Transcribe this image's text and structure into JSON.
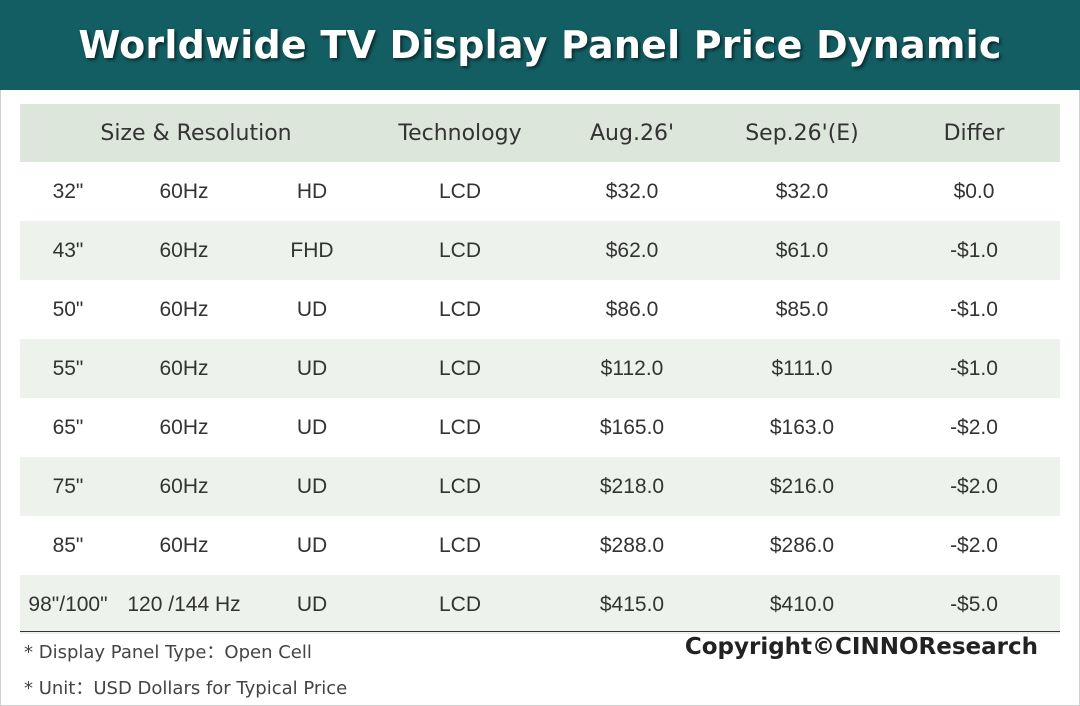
{
  "title": "Worldwide TV Display Panel Price Dynamic",
  "colors": {
    "title_bar": "#135e63",
    "header_row": "#dde6da",
    "alt_row": "#eef2ec"
  },
  "table": {
    "headers": {
      "size_resolution": "Size & Resolution",
      "technology": "Technology",
      "aug": "Aug.26'",
      "sep": "Sep.26'(E)",
      "differ": "Differ"
    },
    "rows": [
      {
        "size": "32\"",
        "refresh": "60Hz",
        "resolution": "HD",
        "technology": "LCD",
        "aug": "$32.0",
        "sep": "$32.0",
        "differ": "$0.0"
      },
      {
        "size": "43\"",
        "refresh": "60Hz",
        "resolution": "FHD",
        "technology": "LCD",
        "aug": "$62.0",
        "sep": "$61.0",
        "differ": "-$1.0"
      },
      {
        "size": "50\"",
        "refresh": "60Hz",
        "resolution": "UD",
        "technology": "LCD",
        "aug": "$86.0",
        "sep": "$85.0",
        "differ": "-$1.0"
      },
      {
        "size": "55\"",
        "refresh": "60Hz",
        "resolution": "UD",
        "technology": "LCD",
        "aug": "$112.0",
        "sep": "$111.0",
        "differ": "-$1.0"
      },
      {
        "size": "65\"",
        "refresh": "60Hz",
        "resolution": "UD",
        "technology": "LCD",
        "aug": "$165.0",
        "sep": "$163.0",
        "differ": "-$2.0"
      },
      {
        "size": "75\"",
        "refresh": "60Hz",
        "resolution": "UD",
        "technology": "LCD",
        "aug": "$218.0",
        "sep": "$216.0",
        "differ": "-$2.0"
      },
      {
        "size": "85\"",
        "refresh": "60Hz",
        "resolution": "UD",
        "technology": "LCD",
        "aug": "$288.0",
        "sep": "$286.0",
        "differ": "-$2.0"
      },
      {
        "size": "98\"/100\"",
        "refresh": "120 /144 Hz",
        "resolution": "UD",
        "technology": "LCD",
        "aug": "$415.0",
        "sep": "$410.0",
        "differ": "-$5.0"
      }
    ]
  },
  "notes": {
    "panel_type": "* Display Panel Type：Open Cell",
    "unit": "* Unit：USD Dollars for Typical Price"
  },
  "copyright": "Copyright©CINNOResearch"
}
